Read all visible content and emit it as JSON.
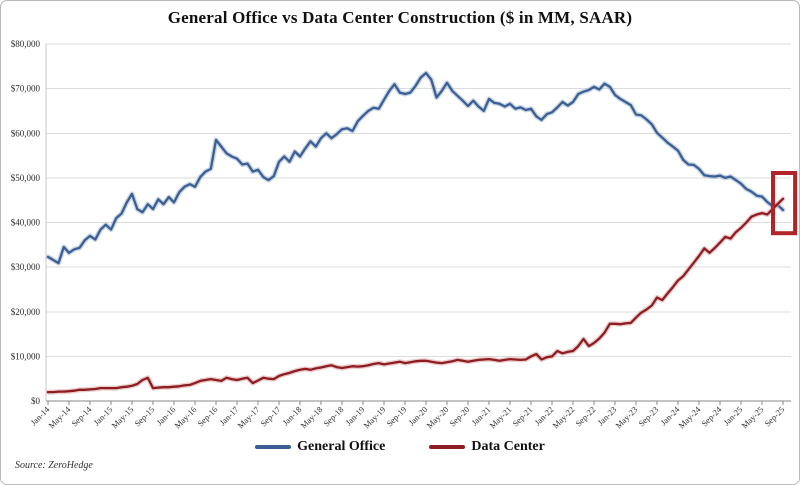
{
  "footer": {
    "source": "Source: ZeroHedge"
  },
  "chart_data": {
    "type": "line",
    "title": "General Office vs Data Center Construction ($ in MM, SAAR)",
    "xlabel": "",
    "ylabel": "$ in MM",
    "ylim": [
      0,
      80000
    ],
    "grid": "horizontal",
    "legend_position": "bottom-center",
    "y_tick_values": [
      0,
      10000,
      20000,
      30000,
      40000,
      50000,
      60000,
      70000,
      80000
    ],
    "y_tick_labels": [
      "$0",
      "$10,000",
      "$20,000",
      "$30,000",
      "$40,000",
      "$50,000",
      "$60,000",
      "$70,000",
      "$80,000"
    ],
    "x_monthly_start": "Jan-14",
    "x_monthly_end": "Sep-25",
    "x_tick_interval_months": 4,
    "x_tick_labels": [
      "Jan-14",
      "May-14",
      "Sep-14",
      "Jan-15",
      "May-15",
      "Sep-15",
      "Jan-16",
      "May-16",
      "Sep-16",
      "Jan-17",
      "May-17",
      "Sep-17",
      "Jan-18",
      "May-18",
      "Sep-18",
      "Jan-19",
      "May-19",
      "Sep-19",
      "Jan-20",
      "May-20",
      "Sep-20",
      "Jan-21",
      "May-21",
      "Sep-21",
      "Jan-22",
      "May-22",
      "Sep-22",
      "Jan-23",
      "May-23",
      "Sep-23",
      "Jan-24",
      "May-24",
      "Sep-24",
      "Jan-25",
      "May-25",
      "Sep-25"
    ],
    "series": [
      {
        "name": "General Office",
        "color": "#3b5f94",
        "halo_color": "#9db4d2",
        "values": [
          32300,
          31600,
          30900,
          34500,
          33200,
          34000,
          34300,
          36000,
          37000,
          36200,
          38400,
          39500,
          38400,
          41000,
          42000,
          44500,
          46400,
          43000,
          42300,
          44100,
          43000,
          45200,
          44100,
          45700,
          44500,
          46800,
          48000,
          48600,
          48000,
          50200,
          51400,
          52000,
          58500,
          57000,
          55500,
          54800,
          54300,
          53000,
          53200,
          51400,
          51800,
          50200,
          49500,
          50400,
          53600,
          54800,
          53600,
          55900,
          54800,
          56600,
          58200,
          57000,
          58900,
          60000,
          58900,
          59800,
          60900,
          61100,
          60500,
          62700,
          63900,
          65000,
          65700,
          65500,
          67500,
          69500,
          71000,
          69100,
          68800,
          69100,
          70600,
          72500,
          73500,
          72000,
          68000,
          69500,
          71300,
          69500,
          68400,
          67300,
          66100,
          67300,
          66000,
          65000,
          67700,
          66800,
          66600,
          66000,
          66600,
          65500,
          65800,
          65200,
          65500,
          63800,
          63000,
          64300,
          64700,
          65800,
          67000,
          66200,
          67000,
          68800,
          69300,
          69700,
          70400,
          69800,
          71100,
          70400,
          68600,
          67700,
          67000,
          66300,
          64200,
          64000,
          63100,
          62000,
          60100,
          59000,
          57900,
          57000,
          56100,
          54000,
          53000,
          52900,
          52000,
          50600,
          50400,
          50300,
          50500,
          50000,
          50300,
          49500,
          48700,
          47500,
          46900,
          46000,
          45800,
          44600,
          43700,
          43900,
          42800
        ]
      },
      {
        "name": "Data Center",
        "color": "#8e1d22",
        "halo_color": "#dba3a3",
        "values": [
          2000,
          2000,
          2100,
          2100,
          2200,
          2300,
          2500,
          2500,
          2600,
          2700,
          2900,
          2900,
          2900,
          2900,
          3100,
          3200,
          3400,
          3800,
          4700,
          5200,
          2900,
          3000,
          3100,
          3100,
          3200,
          3300,
          3500,
          3600,
          4000,
          4500,
          4700,
          4900,
          4700,
          4500,
          5200,
          4900,
          4700,
          5000,
          5200,
          4000,
          4600,
          5200,
          5000,
          4900,
          5600,
          6000,
          6300,
          6700,
          7000,
          7200,
          7000,
          7300,
          7500,
          7800,
          8000,
          7600,
          7400,
          7600,
          7800,
          7700,
          7800,
          8000,
          8300,
          8500,
          8200,
          8400,
          8600,
          8800,
          8500,
          8700,
          8900,
          9000,
          9000,
          8800,
          8600,
          8500,
          8700,
          8900,
          9200,
          9000,
          8800,
          9000,
          9200,
          9300,
          9400,
          9200,
          9000,
          9200,
          9400,
          9300,
          9200,
          9300,
          10000,
          10500,
          9300,
          9800,
          10000,
          11200,
          10700,
          11000,
          11200,
          12300,
          13900,
          12300,
          13000,
          14000,
          15300,
          17300,
          17300,
          17200,
          17400,
          17500,
          18700,
          19800,
          20500,
          21400,
          23200,
          22600,
          24100,
          25500,
          27000,
          28000,
          29500,
          31000,
          32500,
          34200,
          33200,
          34300,
          35500,
          36800,
          36400,
          37800,
          38800,
          40000,
          41300,
          41800,
          42100,
          41800,
          43000,
          44200,
          45300
        ]
      }
    ],
    "annotation": {
      "type": "rect",
      "label": "crossover-highlight",
      "color": "#b32428",
      "x_range_month_index": [
        138.1,
        142.3
      ],
      "y_range": [
        37600,
        51100
      ]
    }
  }
}
